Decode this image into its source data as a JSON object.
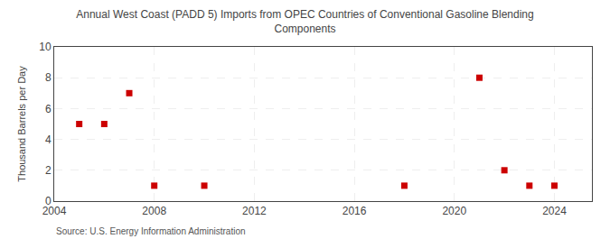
{
  "chart_data": {
    "type": "scatter",
    "title": "Annual West Coast (PADD 5) Imports from OPEC Countries of Conventional Gasoline Blending\nComponents",
    "ylabel": "Thousand Barrels per Day",
    "annotations": [
      "Source: U.S. Energy Information Administration"
    ],
    "x": [
      2005,
      2006,
      2007,
      2008,
      2010,
      2018,
      2021,
      2022,
      2023,
      2024
    ],
    "values": [
      5,
      5,
      7,
      1,
      1,
      1,
      8,
      2,
      1,
      1
    ],
    "color": "#cc0000",
    "marker": "square",
    "xlim": [
      2004,
      2025.5
    ],
    "ylim": [
      0,
      10
    ],
    "xticks": [
      2004,
      2008,
      2012,
      2016,
      2020,
      2024
    ],
    "yticks": [
      0,
      2,
      4,
      6,
      8,
      10
    ],
    "grid": true
  }
}
